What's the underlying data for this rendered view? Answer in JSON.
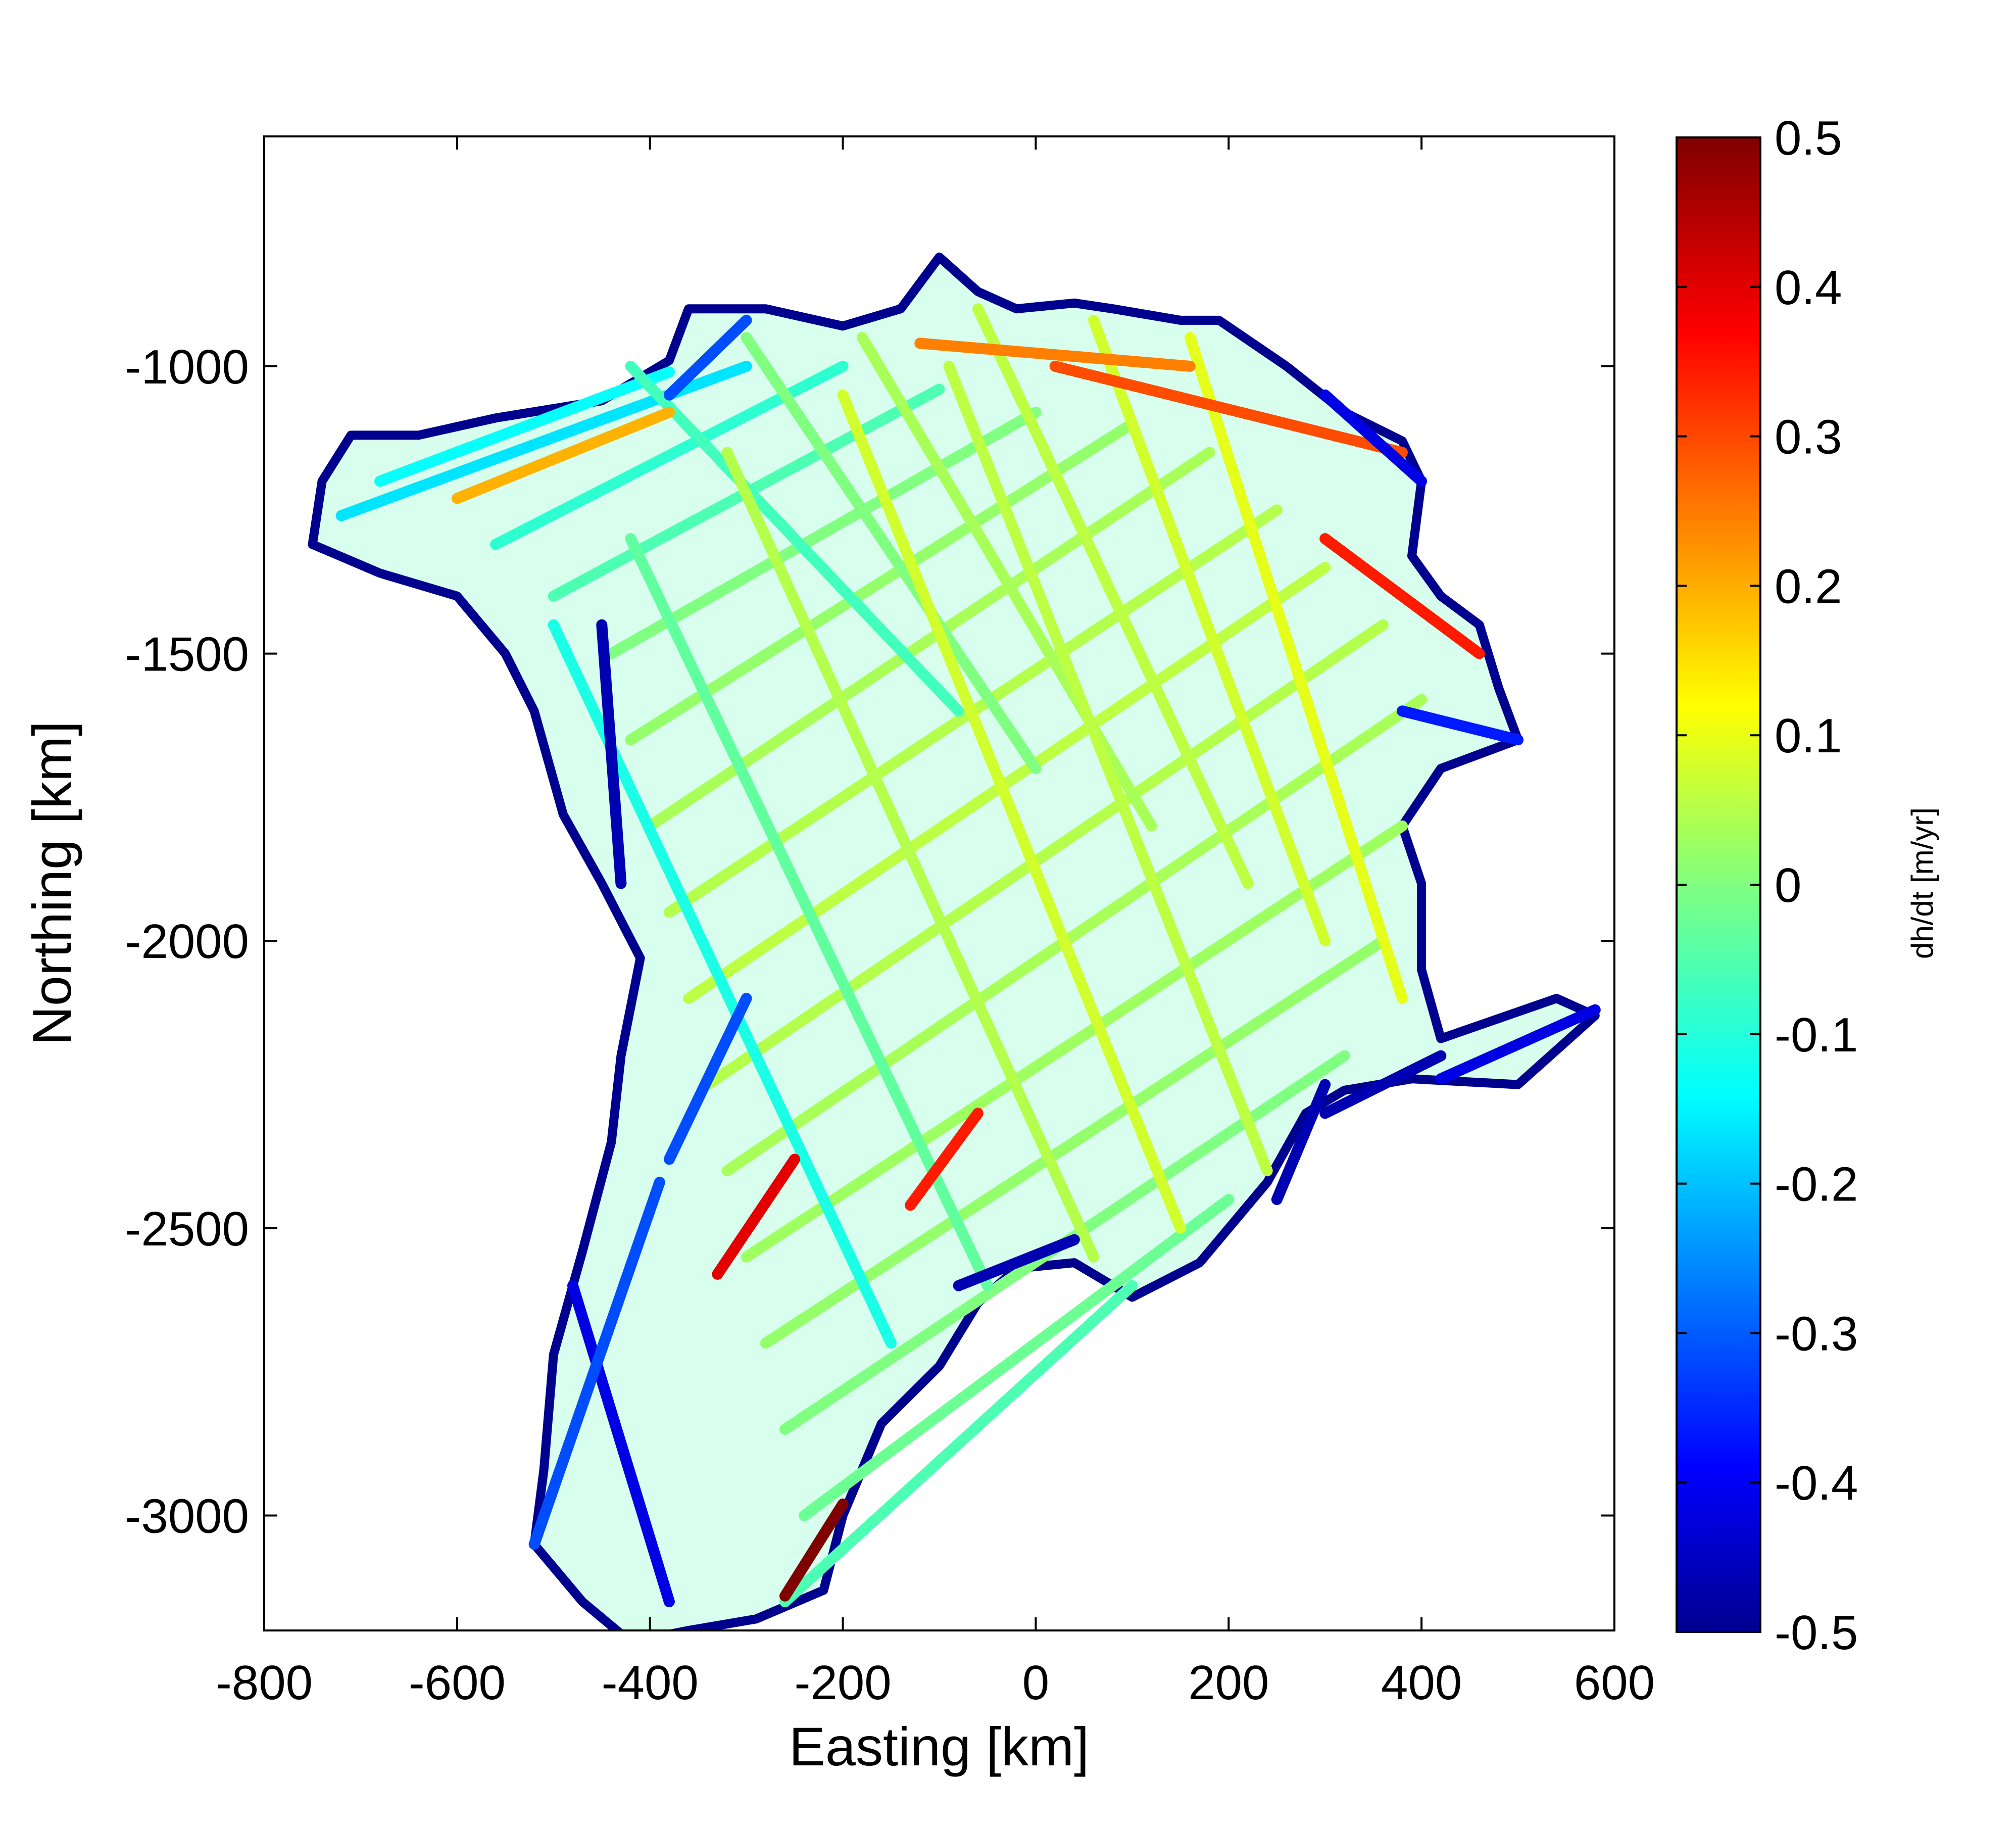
{
  "chart_data": {
    "type": "scatter",
    "title": "",
    "xlabel": "Easting [km]",
    "ylabel": "Northing [km]",
    "xlim": [
      -800,
      600
    ],
    "ylim": [
      -3200,
      -600
    ],
    "xticks": [
      -800,
      -600,
      -400,
      -200,
      0,
      200,
      400,
      600
    ],
    "xtick_labels": [
      "-800",
      "-600",
      "-400",
      "-200",
      "0",
      "200",
      "400",
      "600"
    ],
    "yticks": [
      -1000,
      -1500,
      -2000,
      -2500,
      -3000
    ],
    "ytick_labels": [
      "-1000",
      "-1500",
      "-2000",
      "-2500",
      "-3000"
    ],
    "grid": false,
    "colormap": "jet",
    "colorbar": {
      "label": "dh/dt [m/yr]",
      "range": [
        -0.5,
        0.5
      ],
      "ticks": [
        0.5,
        0.4,
        0.3,
        0.2,
        0.1,
        0,
        -0.1,
        -0.2,
        -0.3,
        -0.4,
        -0.5
      ],
      "tick_labels": [
        "0.5",
        "0.4",
        "0.3",
        "0.2",
        "0.1",
        "0",
        "-0.1",
        "-0.2",
        "-0.3",
        "-0.4",
        "-0.5"
      ]
    },
    "region_outline": [
      [
        -100,
        -810
      ],
      [
        -60,
        -870
      ],
      [
        -20,
        -900
      ],
      [
        40,
        -890
      ],
      [
        80,
        -900
      ],
      [
        150,
        -920
      ],
      [
        190,
        -920
      ],
      [
        260,
        -1000
      ],
      [
        320,
        -1080
      ],
      [
        380,
        -1130
      ],
      [
        400,
        -1200
      ],
      [
        390,
        -1330
      ],
      [
        420,
        -1400
      ],
      [
        460,
        -1450
      ],
      [
        480,
        -1560
      ],
      [
        500,
        -1650
      ],
      [
        420,
        -1700
      ],
      [
        380,
        -1800
      ],
      [
        400,
        -1900
      ],
      [
        400,
        -2050
      ],
      [
        420,
        -2170
      ],
      [
        540,
        -2100
      ],
      [
        580,
        -2130
      ],
      [
        500,
        -2250
      ],
      [
        390,
        -2240
      ],
      [
        320,
        -2260
      ],
      [
        280,
        -2300
      ],
      [
        240,
        -2420
      ],
      [
        200,
        -2500
      ],
      [
        170,
        -2560
      ],
      [
        100,
        -2620
      ],
      [
        40,
        -2560
      ],
      [
        -20,
        -2570
      ],
      [
        -60,
        -2630
      ],
      [
        -100,
        -2740
      ],
      [
        -160,
        -2840
      ],
      [
        -200,
        -3000
      ],
      [
        -220,
        -3130
      ],
      [
        -290,
        -3180
      ],
      [
        -360,
        -3200
      ],
      [
        -420,
        -3220
      ],
      [
        -470,
        -3150
      ],
      [
        -520,
        -3050
      ],
      [
        -510,
        -2920
      ],
      [
        -500,
        -2720
      ],
      [
        -470,
        -2540
      ],
      [
        -440,
        -2350
      ],
      [
        -430,
        -2200
      ],
      [
        -410,
        -2030
      ],
      [
        -450,
        -1900
      ],
      [
        -490,
        -1780
      ],
      [
        -520,
        -1600
      ],
      [
        -550,
        -1500
      ],
      [
        -600,
        -1400
      ],
      [
        -680,
        -1360
      ],
      [
        -750,
        -1310
      ],
      [
        -740,
        -1200
      ],
      [
        -710,
        -1120
      ],
      [
        -640,
        -1120
      ],
      [
        -560,
        -1090
      ],
      [
        -450,
        -1060
      ],
      [
        -380,
        -990
      ],
      [
        -360,
        -900
      ],
      [
        -280,
        -900
      ],
      [
        -200,
        -930
      ],
      [
        -140,
        -900
      ]
    ],
    "series": [
      {
        "tracks": [
          {
            "start": [
              -680,
              -1200
            ],
            "end": [
              -380,
              -1010
            ],
            "rate": -0.12
          },
          {
            "start": [
              -720,
              -1260
            ],
            "end": [
              -300,
              -1000
            ],
            "rate": -0.15
          },
          {
            "start": [
              -560,
              -1310
            ],
            "end": [
              -200,
              -1000
            ],
            "rate": -0.08
          },
          {
            "start": [
              -500,
              -1400
            ],
            "end": [
              -100,
              -1040
            ],
            "rate": -0.05
          },
          {
            "start": [
              -440,
              -1500
            ],
            "end": [
              0,
              -1080
            ],
            "rate": 0.0
          },
          {
            "start": [
              -420,
              -1650
            ],
            "end": [
              100,
              -1100
            ],
            "rate": 0.02
          },
          {
            "start": [
              -400,
              -1800
            ],
            "end": [
              180,
              -1150
            ],
            "rate": 0.04
          },
          {
            "start": [
              -380,
              -1950
            ],
            "end": [
              250,
              -1250
            ],
            "rate": 0.05
          },
          {
            "start": [
              -360,
              -2100
            ],
            "end": [
              300,
              -1350
            ],
            "rate": 0.06
          },
          {
            "start": [
              -340,
              -2250
            ],
            "end": [
              360,
              -1450
            ],
            "rate": 0.05
          },
          {
            "start": [
              -320,
              -2400
            ],
            "end": [
              400,
              -1580
            ],
            "rate": 0.04
          },
          {
            "start": [
              -300,
              -2550
            ],
            "end": [
              380,
              -1800
            ],
            "rate": 0.03
          },
          {
            "start": [
              -280,
              -2700
            ],
            "end": [
              360,
              -2000
            ],
            "rate": 0.02
          },
          {
            "start": [
              -260,
              -2850
            ],
            "end": [
              320,
              -2200
            ],
            "rate": 0.0
          },
          {
            "start": [
              -240,
              -3000
            ],
            "end": [
              200,
              -2450
            ],
            "rate": -0.02
          },
          {
            "start": [
              -260,
              -3150
            ],
            "end": [
              100,
              -2600
            ],
            "rate": -0.05
          },
          {
            "start": [
              -420,
              -1000
            ],
            "end": [
              -80,
              -1600
            ],
            "rate": -0.06
          },
          {
            "start": [
              -300,
              -950
            ],
            "end": [
              0,
              -1700
            ],
            "rate": 0.0
          },
          {
            "start": [
              -180,
              -950
            ],
            "end": [
              120,
              -1800
            ],
            "rate": 0.04
          },
          {
            "start": [
              -60,
              -900
            ],
            "end": [
              220,
              -1900
            ],
            "rate": 0.06
          },
          {
            "start": [
              60,
              -920
            ],
            "end": [
              300,
              -2000
            ],
            "rate": 0.08
          },
          {
            "start": [
              160,
              -950
            ],
            "end": [
              380,
              -2100
            ],
            "rate": 0.1
          },
          {
            "start": [
              -500,
              -1450
            ],
            "end": [
              -150,
              -2700
            ],
            "rate": -0.1
          },
          {
            "start": [
              -420,
              -1300
            ],
            "end": [
              -50,
              -2600
            ],
            "rate": -0.03
          },
          {
            "start": [
              -320,
              -1150
            ],
            "end": [
              60,
              -2550
            ],
            "rate": 0.05
          },
          {
            "start": [
              -200,
              -1050
            ],
            "end": [
              150,
              -2500
            ],
            "rate": 0.08
          },
          {
            "start": [
              -90,
              -1000
            ],
            "end": [
              240,
              -2400
            ],
            "rate": 0.06
          },
          {
            "start": [
              -480,
              -2600
            ],
            "end": [
              -380,
              -3150
            ],
            "rate": -0.4
          },
          {
            "start": [
              -450,
              -1450
            ],
            "end": [
              -430,
              -1900
            ],
            "rate": -0.45
          },
          {
            "start": [
              -520,
              -3050
            ],
            "end": [
              -390,
              -2420
            ],
            "rate": -0.3
          },
          {
            "start": [
              20,
              -1000
            ],
            "end": [
              380,
              -1150
            ],
            "rate": 0.3
          },
          {
            "start": [
              -120,
              -960
            ],
            "end": [
              160,
              -1000
            ],
            "rate": 0.25
          },
          {
            "start": [
              300,
              -1300
            ],
            "end": [
              460,
              -1500
            ],
            "rate": 0.35
          },
          {
            "start": [
              -330,
              -2580
            ],
            "end": [
              -250,
              -2380
            ],
            "rate": 0.4
          },
          {
            "start": [
              -260,
              -3140
            ],
            "end": [
              -200,
              -2980
            ],
            "rate": 0.5
          },
          {
            "start": [
              -130,
              -2460
            ],
            "end": [
              -60,
              -2300
            ],
            "rate": 0.35
          },
          {
            "start": [
              -600,
              -1230
            ],
            "end": [
              -380,
              -1080
            ],
            "rate": 0.2
          },
          {
            "start": [
              -380,
              -2380
            ],
            "end": [
              -300,
              -2100
            ],
            "rate": -0.3
          },
          {
            "start": [
              -80,
              -2600
            ],
            "end": [
              40,
              -2520
            ],
            "rate": -0.45
          },
          {
            "start": [
              420,
              -2240
            ],
            "end": [
              580,
              -2120
            ],
            "rate": -0.4
          },
          {
            "start": [
              300,
              -2300
            ],
            "end": [
              420,
              -2200
            ],
            "rate": -0.45
          },
          {
            "start": [
              250,
              -2450
            ],
            "end": [
              300,
              -2250
            ],
            "rate": -0.45
          },
          {
            "start": [
              380,
              -1600
            ],
            "end": [
              500,
              -1650
            ],
            "rate": -0.35
          },
          {
            "start": [
              300,
              -1050
            ],
            "end": [
              400,
              -1200
            ],
            "rate": -0.4
          },
          {
            "start": [
              -380,
              -1050
            ],
            "end": [
              -300,
              -920
            ],
            "rate": -0.3
          }
        ]
      }
    ]
  }
}
